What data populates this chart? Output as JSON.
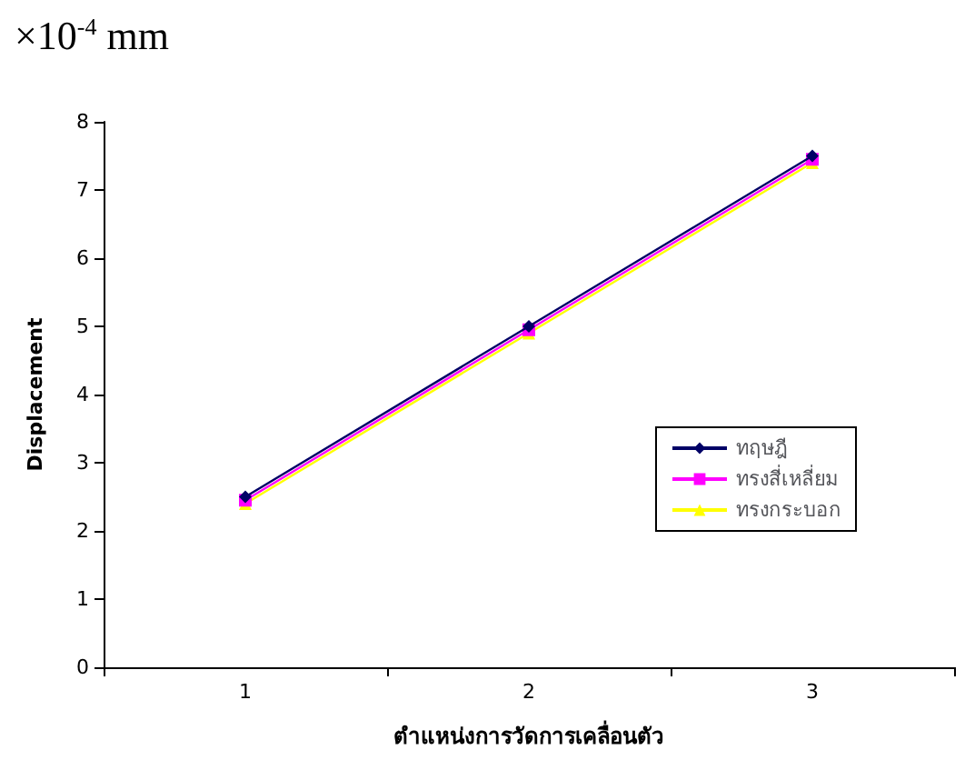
{
  "chart_data": {
    "type": "line",
    "annotations": [
      "×10$^{-4}$ mm"
    ],
    "xlabel": "ตำแหน่งการวัดการเคลื่อนตัว",
    "ylabel": "Displacement",
    "categories": [
      "1",
      "2",
      "3"
    ],
    "series": [
      {
        "name": "ทฤษฎี",
        "color": "#000066",
        "values": [
          2.5,
          5.0,
          7.5
        ],
        "marker": "diamond"
      },
      {
        "name": "ทรงสี่เหลี่ยม",
        "color": "#ff00ff",
        "values": [
          2.45,
          4.95,
          7.45
        ],
        "marker": "square"
      },
      {
        "name": "ทรงกระบอก",
        "color": "#ffff00",
        "values": [
          2.4,
          4.9,
          7.4
        ],
        "marker": "triangle"
      }
    ],
    "ylim": [
      0,
      8
    ],
    "yticks": [
      0,
      1,
      2,
      3,
      4,
      5,
      6,
      7,
      8
    ],
    "grid": false,
    "legend": "right",
    "line_style": "solid"
  }
}
